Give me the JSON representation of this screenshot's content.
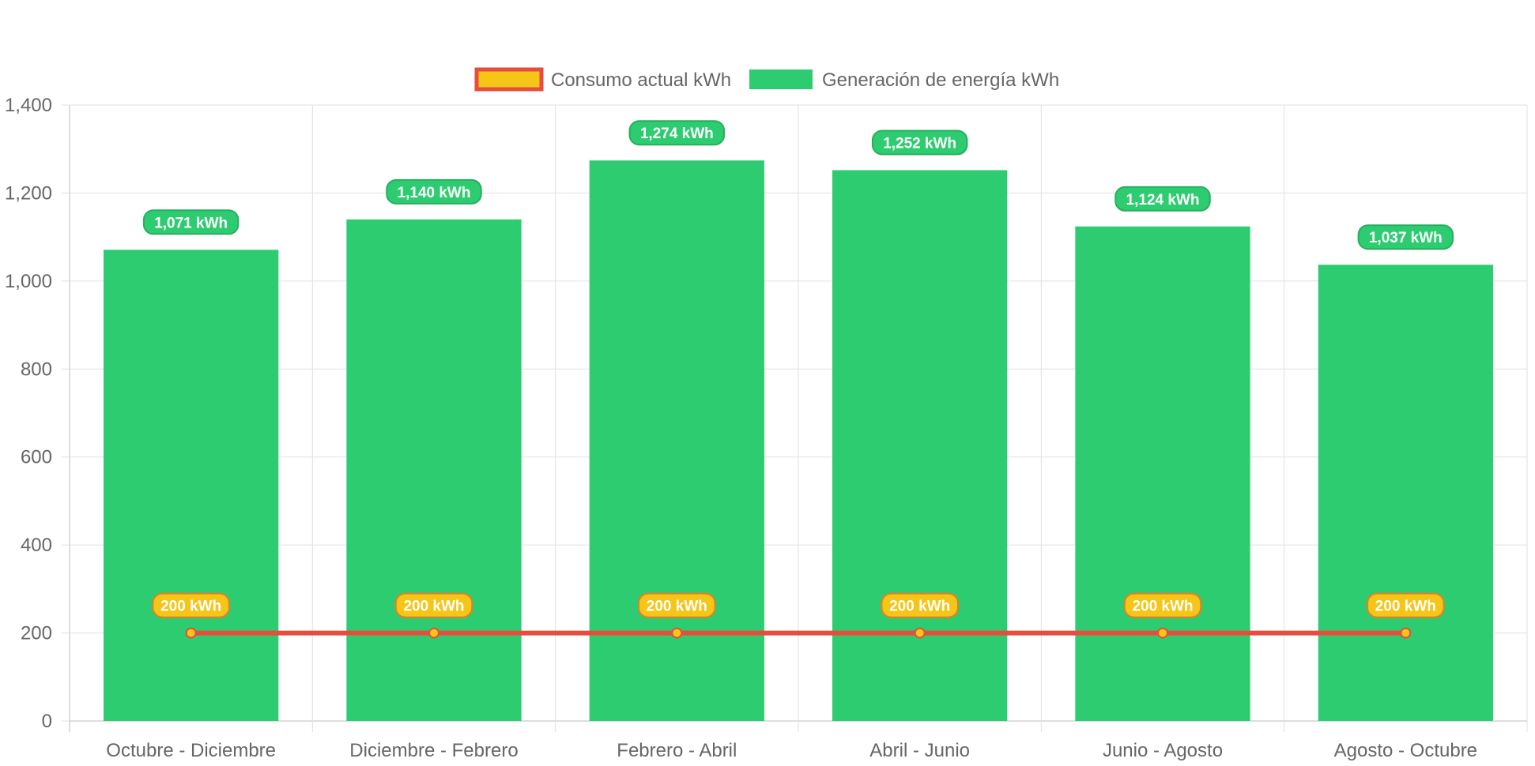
{
  "chart_data": {
    "type": "bar",
    "categories": [
      "Octubre - Diciembre",
      "Diciembre - Febrero",
      "Febrero - Abril",
      "Abril - Junio",
      "Junio - Agosto",
      "Agosto - Octubre"
    ],
    "series": [
      {
        "name": "Consumo actual kWh",
        "type": "line",
        "values": [
          200,
          200,
          200,
          200,
          200,
          200
        ],
        "labels": [
          "200 kWh",
          "200 kWh",
          "200 kWh",
          "200 kWh",
          "200 kWh",
          "200 kWh"
        ],
        "color": "#e74c3c",
        "fill_color": "#f5c518"
      },
      {
        "name": "Generación de energía kWh",
        "type": "bar",
        "values": [
          1071,
          1140,
          1274,
          1252,
          1124,
          1037
        ],
        "labels": [
          "1,071 kWh",
          "1,140 kWh",
          "1,274 kWh",
          "1,252 kWh",
          "1,124 kWh",
          "1,037 kWh"
        ],
        "color": "#2ecc71"
      }
    ],
    "yticks": [
      "0",
      "200",
      "400",
      "600",
      "800",
      "1,000",
      "1,200",
      "1,400"
    ],
    "ylim": [
      0,
      1400
    ],
    "grid": true,
    "legend_position": "top"
  }
}
